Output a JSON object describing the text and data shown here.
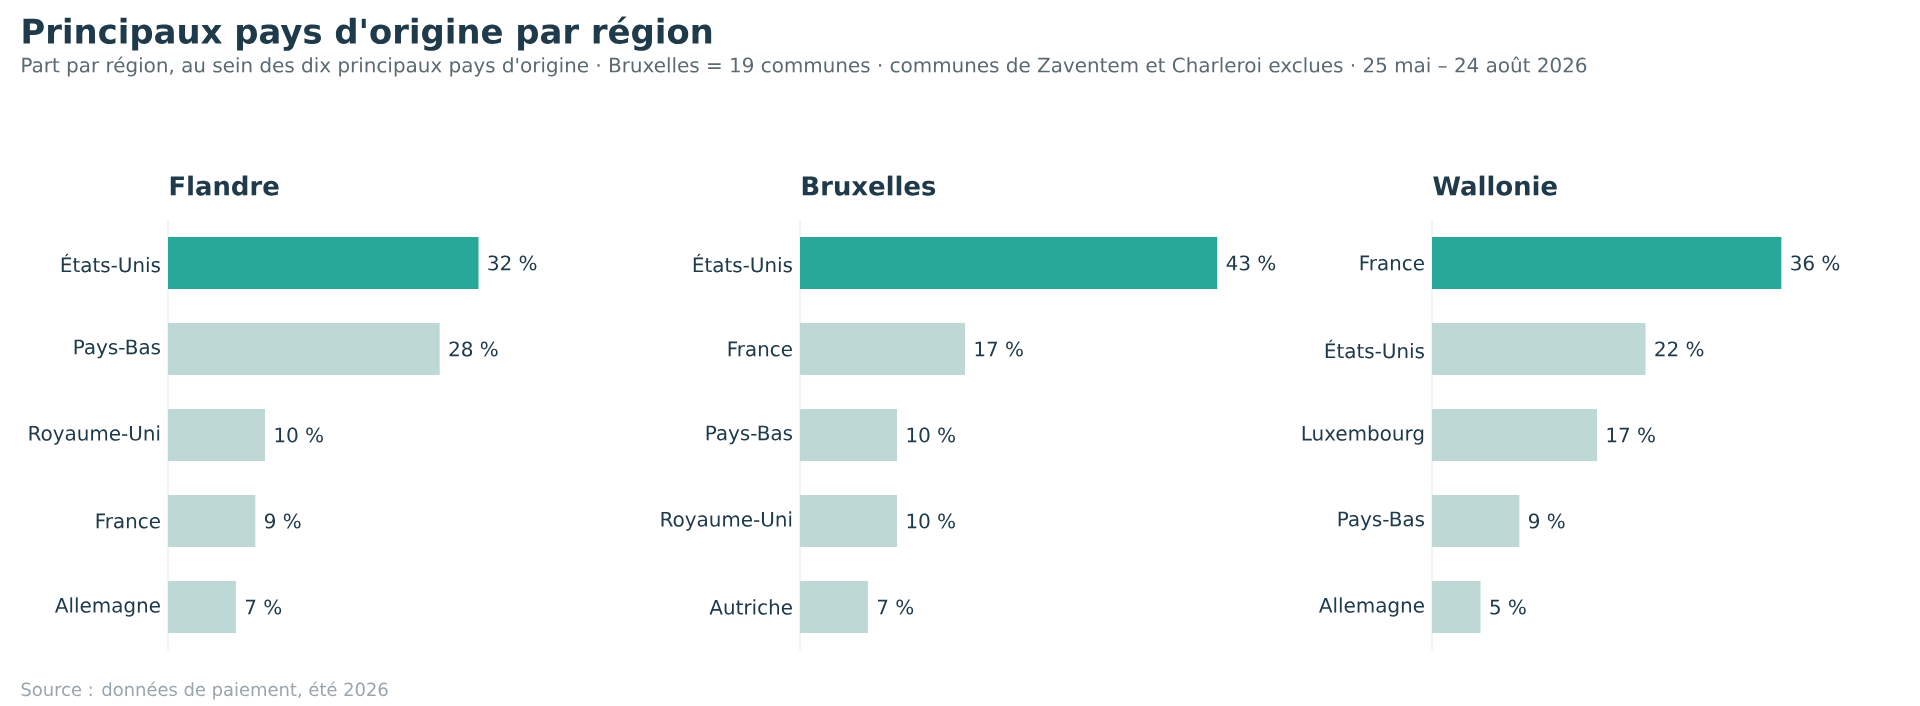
{
  "chart_data": [
    {
      "type": "other",
      "title": "Principaux pays d'origine par région",
      "subtitle": "Part par région, au sein des dix principaux pays d'origine · Bruxelles = 19 communes · communes de Zaventem et Charleroi exclues · 25 mai – 24 août 2026",
      "annotations": [
        "Source : données de paiement, été 2026"
      ]
    },
    {
      "type": "bar",
      "orientation": "horizontal",
      "title": "Flandre",
      "categories": [
        "États-Unis",
        "Pays-Bas",
        "Royaume-Uni",
        "France",
        "Allemagne"
      ],
      "values": [
        32,
        28,
        10,
        9,
        7
      ],
      "value_labels": [
        "32 %",
        "28 %",
        "10 %",
        "9 %",
        "7 %"
      ],
      "colors": [
        "#27a899",
        "#bed8d6",
        "#bed8d6",
        "#bed8d6",
        "#bed8d6"
      ],
      "tick_labels": "y"
    },
    {
      "type": "bar",
      "orientation": "horizontal",
      "title": "Bruxelles",
      "categories": [
        "États-Unis",
        "France",
        "Pays-Bas",
        "Royaume-Uni",
        "Autriche"
      ],
      "values": [
        43,
        17,
        10,
        10,
        7
      ],
      "value_labels": [
        "43 %",
        "17 %",
        "10 %",
        "10 %",
        "7 %"
      ],
      "colors": [
        "#27a899",
        "#bed8d6",
        "#bed8d6",
        "#bed8d6",
        "#bed8d6"
      ],
      "tick_labels": "y"
    },
    {
      "type": "bar",
      "orientation": "horizontal",
      "title": "Wallonie",
      "categories": [
        "France",
        "États-Unis",
        "Luxembourg",
        "Pays-Bas",
        "Allemagne"
      ],
      "values": [
        36,
        22,
        17,
        9,
        5
      ],
      "value_labels": [
        "36 %",
        "22 %",
        "17 %",
        "9 %",
        "5 %"
      ],
      "colors": [
        "#27a899",
        "#bed8d6",
        "#bed8d6",
        "#bed8d6",
        "#bed8d6"
      ],
      "tick_labels": "y"
    }
  ]
}
